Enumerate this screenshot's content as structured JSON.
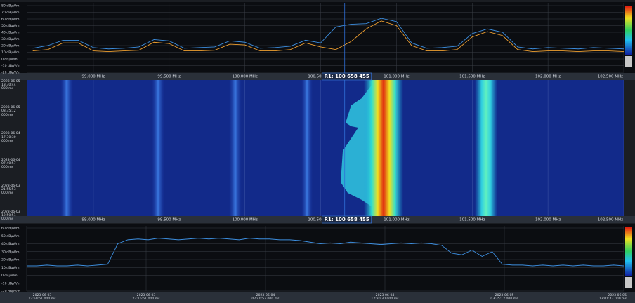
{
  "spectrum": {
    "type": "line",
    "xlim": [
      98.56,
      102.5
    ],
    "ylim": [
      -20,
      80
    ],
    "xticks": [
      {
        "value": 99,
        "label": "99.000 MHz"
      },
      {
        "value": 99.5,
        "label": "99.500 MHz"
      },
      {
        "value": 100,
        "label": "100.000 MHz"
      },
      {
        "value": 100.5,
        "label": "100.500 MHz"
      },
      {
        "value": 101,
        "label": "101.000 MHz"
      },
      {
        "value": 101.5,
        "label": "101.500 MHz"
      },
      {
        "value": 102,
        "label": "102.000 MHz"
      },
      {
        "value": 102.5,
        "label": "102.500 MHz"
      }
    ],
    "yticks": [
      {
        "value": 80,
        "label": "80 dBµV/m"
      },
      {
        "value": 70,
        "label": "70 dBµV/m"
      },
      {
        "value": 60,
        "label": "60 dBµV/m"
      },
      {
        "value": 50,
        "label": "50 dBµV/m"
      },
      {
        "value": 40,
        "label": "40 dBµV/m"
      },
      {
        "value": 30,
        "label": "30 dBµV/m"
      },
      {
        "value": 20,
        "label": "20 dBµV/m"
      },
      {
        "value": 10,
        "label": "10 dBµV/m"
      },
      {
        "value": 0,
        "label": "0 dBµV/m"
      },
      {
        "value": -10,
        "label": "-10 dBµV/m"
      },
      {
        "value": -20,
        "label": "-20 dBµV/m"
      }
    ],
    "marker": {
      "value": 100.658455,
      "label": "R1: 100 658 455"
    },
    "x": [
      98.6,
      98.7,
      98.8,
      98.9,
      99.0,
      99.1,
      99.2,
      99.3,
      99.4,
      99.5,
      99.6,
      99.7,
      99.8,
      99.9,
      100.0,
      100.1,
      100.2,
      100.3,
      100.4,
      100.5,
      100.6,
      100.7,
      100.8,
      100.9,
      101.0,
      101.1,
      101.2,
      101.3,
      101.4,
      101.5,
      101.6,
      101.7,
      101.8,
      101.9,
      102.0,
      102.1,
      102.2,
      102.3,
      102.4,
      102.5
    ],
    "series": [
      {
        "color": "#3d8fe0",
        "values": [
          16,
          20,
          28,
          28,
          17,
          15,
          16,
          18,
          29,
          27,
          16,
          17,
          18,
          27,
          25,
          16,
          17,
          19,
          28,
          24,
          48,
          52,
          53,
          61,
          56,
          24,
          16,
          17,
          19,
          38,
          45,
          40,
          18,
          15,
          17,
          16,
          15,
          17,
          16,
          15
        ]
      },
      {
        "color": "#f0a030",
        "values": [
          12,
          14,
          24,
          24,
          12,
          11,
          12,
          13,
          25,
          23,
          12,
          12,
          13,
          22,
          21,
          12,
          12,
          14,
          24,
          18,
          14,
          26,
          45,
          57,
          50,
          20,
          12,
          12,
          14,
          33,
          41,
          35,
          14,
          11,
          12,
          12,
          11,
          12,
          12,
          11
        ]
      }
    ]
  },
  "waterfall": {
    "time_labels": [
      "2023-06-05\n13:30:44\n000 ms",
      "2023-06-05\n03:35:12\n000 ms",
      "2023-06-04\n17:30:30\n000 ms",
      "2023-06-04\n07:40:57\n000 ms",
      "2023-06-03\n21:55:53\n000 ms",
      "2023-06-03\n12:50:51\n000 ms"
    ]
  },
  "level": {
    "type": "line",
    "color": "#3d8fe0",
    "ylim": [
      -20,
      60
    ],
    "yticks": [
      {
        "value": 60,
        "label": "60 dBµV/m"
      },
      {
        "value": 50,
        "label": "50 dBµV/m"
      },
      {
        "value": 40,
        "label": "40 dBµV/m"
      },
      {
        "value": 30,
        "label": "30 dBµV/m"
      },
      {
        "value": 20,
        "label": "20 dBµV/m"
      },
      {
        "value": 10,
        "label": "10 dBµV/m"
      },
      {
        "value": 0,
        "label": "0 dBµV/m"
      },
      {
        "value": -10,
        "label": "-10 dBµV/m"
      },
      {
        "value": -20,
        "label": "-20 dBµV/m"
      }
    ],
    "time_labels": [
      "2023-06-03\n12:50:51 000 ms",
      "2023-06-03\n22:16:51 000 ms",
      "2023-06-04\n07:40:57 000 ms",
      "2023-06-04\n17:30:30 000 ms",
      "2023-06-05\n03:35:12 000 ms",
      "2023-06-05\n13:01:43 000 ms"
    ],
    "values": [
      12,
      12,
      13,
      12,
      12,
      13,
      12,
      13,
      14,
      40,
      45,
      46,
      45,
      47,
      46,
      45,
      46,
      47,
      46,
      47,
      46,
      45,
      47,
      46,
      46,
      45,
      45,
      44,
      42,
      40,
      41,
      40,
      42,
      41,
      40,
      39,
      40,
      41,
      40,
      41,
      40,
      38,
      28,
      26,
      32,
      24,
      30,
      14,
      13,
      13,
      12,
      13,
      12,
      13,
      12,
      13,
      12,
      12,
      13,
      12
    ]
  }
}
